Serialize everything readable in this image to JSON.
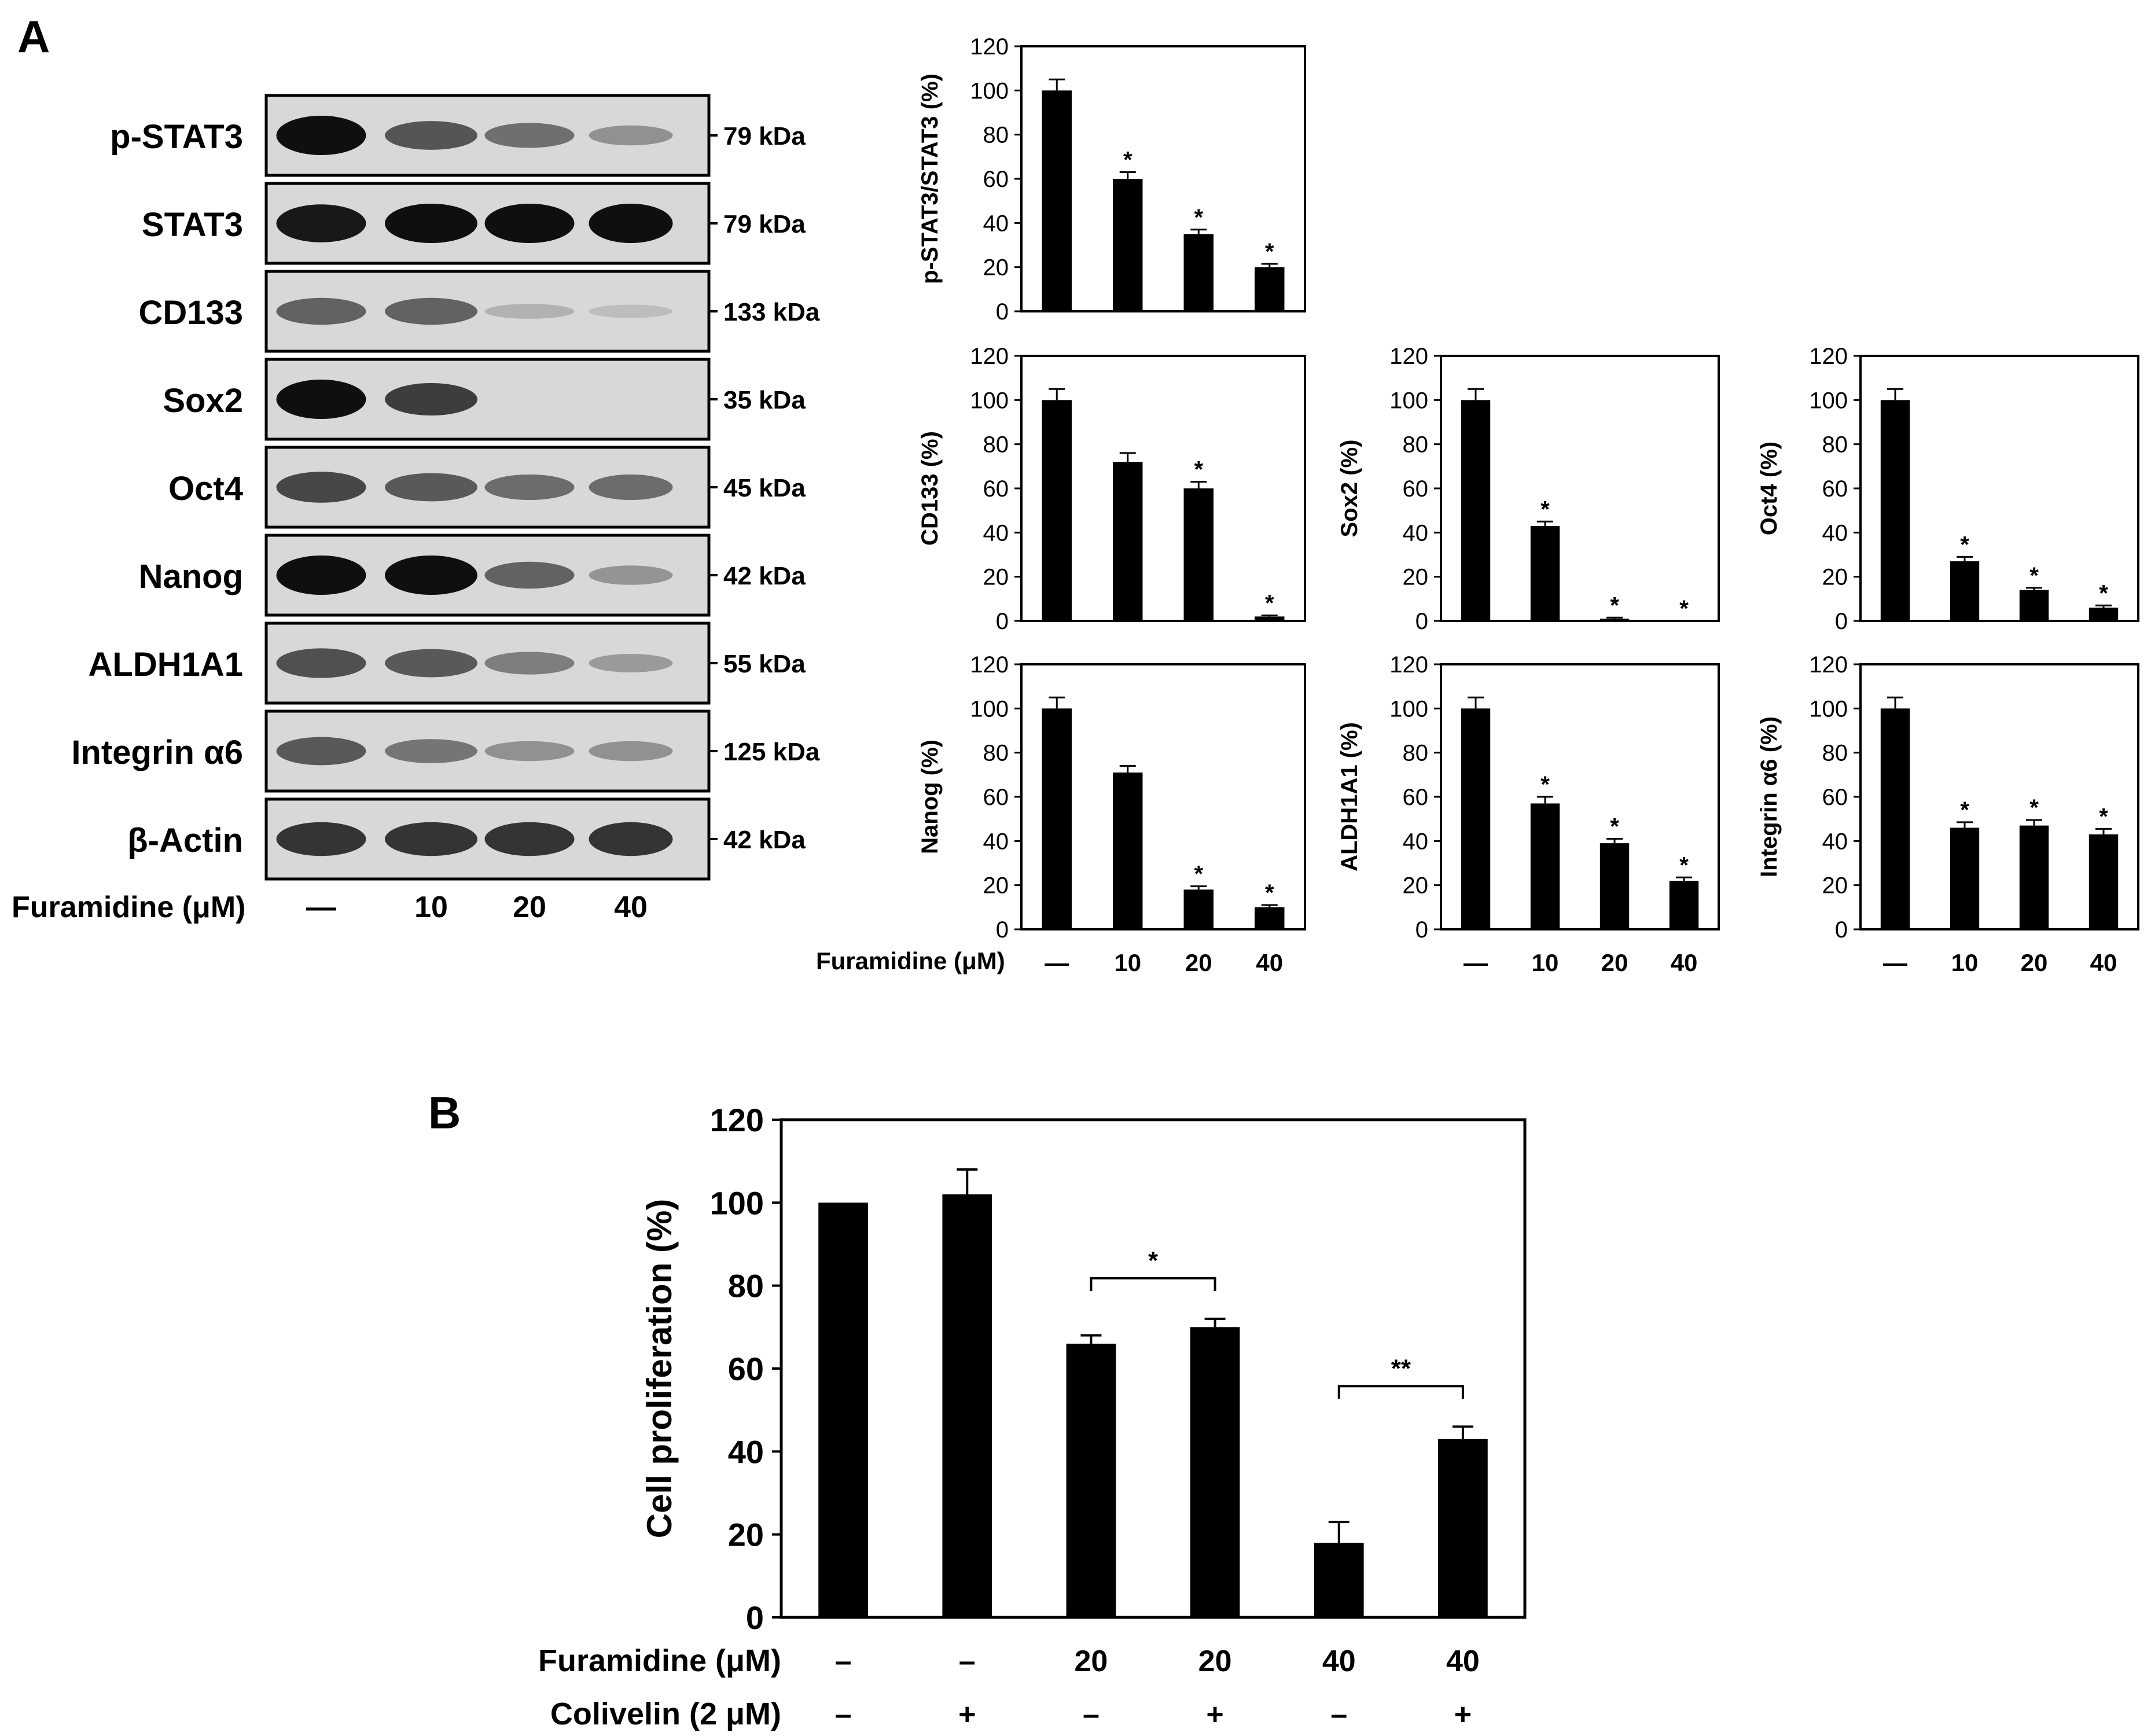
{
  "panel_a_label": "A",
  "panel_b_label": "B",
  "blot": {
    "rows": [
      {
        "label": "p-STAT3",
        "kda": "79 kDa",
        "intensity": [
          1.0,
          0.62,
          0.48,
          0.3
        ]
      },
      {
        "label": "STAT3",
        "kda": "79 kDa",
        "intensity": [
          0.95,
          1.0,
          1.0,
          1.0
        ]
      },
      {
        "label": "CD133",
        "kda": "133 kDa",
        "intensity": [
          0.55,
          0.55,
          0.12,
          0.06
        ]
      },
      {
        "label": "Sox2",
        "kda": "35 kDa",
        "intensity": [
          1.0,
          0.75,
          0.0,
          0.0
        ]
      },
      {
        "label": "Oct4",
        "kda": "45 kDa",
        "intensity": [
          0.7,
          0.6,
          0.5,
          0.5
        ]
      },
      {
        "label": "Nanog",
        "kda": "42 kDa",
        "intensity": [
          1.0,
          1.0,
          0.55,
          0.28
        ]
      },
      {
        "label": "ALDH1A1",
        "kda": "55 kDa",
        "intensity": [
          0.65,
          0.6,
          0.4,
          0.25
        ]
      },
      {
        "label": "Integrin α6",
        "kda": "125 kDa",
        "intensity": [
          0.6,
          0.45,
          0.3,
          0.3
        ]
      },
      {
        "label": "β-Actin",
        "kda": "42 kDa",
        "intensity": [
          0.8,
          0.8,
          0.8,
          0.8
        ]
      }
    ],
    "treatment_label": "Furamidine (μM)",
    "lanes": [
      "—",
      "10",
      "20",
      "40"
    ]
  },
  "shared_xlabel": "Furamidine (μM)",
  "chart_data": [
    {
      "type": "bar",
      "ylabel": "p-STAT3/STAT3 (%)",
      "categories": [
        "—",
        "10",
        "20",
        "40"
      ],
      "values": [
        100,
        60,
        35,
        20
      ],
      "errors": [
        5,
        3,
        2,
        1.5
      ],
      "sig": [
        "",
        "*",
        "*",
        "*"
      ],
      "ylim": [
        0,
        120
      ],
      "yticks": [
        "0",
        "20",
        "40",
        "60",
        "80",
        "100",
        "120"
      ]
    },
    {
      "type": "bar",
      "ylabel": "CD133 (%)",
      "categories": [
        "—",
        "10",
        "20",
        "40"
      ],
      "values": [
        100,
        72,
        60,
        2
      ],
      "errors": [
        5,
        4,
        3,
        0.5
      ],
      "sig": [
        "",
        "",
        "*",
        "*"
      ],
      "ylim": [
        0,
        120
      ],
      "yticks": [
        "0",
        "20",
        "40",
        "60",
        "80",
        "100",
        "120"
      ]
    },
    {
      "type": "bar",
      "ylabel": "Sox2 (%)",
      "categories": [
        "—",
        "10",
        "20",
        "40"
      ],
      "values": [
        100,
        43,
        1,
        0
      ],
      "errors": [
        5,
        2,
        0.5,
        0
      ],
      "sig": [
        "",
        "*",
        "*",
        "*"
      ],
      "ylim": [
        0,
        120
      ],
      "yticks": [
        "0",
        "20",
        "40",
        "60",
        "80",
        "100",
        "120"
      ]
    },
    {
      "type": "bar",
      "ylabel": "Oct4 (%)",
      "categories": [
        "—",
        "10",
        "20",
        "40"
      ],
      "values": [
        100,
        27,
        14,
        6
      ],
      "errors": [
        5,
        2,
        1,
        1
      ],
      "sig": [
        "",
        "*",
        "*",
        "*"
      ],
      "ylim": [
        0,
        120
      ],
      "yticks": [
        "0",
        "20",
        "40",
        "60",
        "80",
        "100",
        "120"
      ]
    },
    {
      "type": "bar",
      "ylabel": "Nanog (%)",
      "categories": [
        "—",
        "10",
        "20",
        "40"
      ],
      "values": [
        100,
        71,
        18,
        10
      ],
      "errors": [
        5,
        3,
        1.5,
        1
      ],
      "sig": [
        "",
        "",
        "*",
        "*"
      ],
      "ylim": [
        0,
        120
      ],
      "yticks": [
        "0",
        "20",
        "40",
        "60",
        "80",
        "100",
        "120"
      ]
    },
    {
      "type": "bar",
      "ylabel": "ALDH1A1 (%)",
      "categories": [
        "—",
        "10",
        "20",
        "40"
      ],
      "values": [
        100,
        57,
        39,
        22
      ],
      "errors": [
        5,
        3,
        2,
        1.5
      ],
      "sig": [
        "",
        "*",
        "*",
        "*"
      ],
      "ylim": [
        0,
        120
      ],
      "yticks": [
        "0",
        "20",
        "40",
        "60",
        "80",
        "100",
        "120"
      ]
    },
    {
      "type": "bar",
      "ylabel": "Integrin α6 (%)",
      "categories": [
        "—",
        "10",
        "20",
        "40"
      ],
      "values": [
        100,
        46,
        47,
        43
      ],
      "errors": [
        5,
        2.5,
        2.5,
        2.5
      ],
      "sig": [
        "",
        "*",
        "*",
        "*"
      ],
      "ylim": [
        0,
        120
      ],
      "yticks": [
        "0",
        "20",
        "40",
        "60",
        "80",
        "100",
        "120"
      ]
    },
    {
      "type": "bar",
      "ylabel": "Cell proliferation (%)",
      "values": [
        100,
        102,
        66,
        70,
        18,
        43
      ],
      "errors": [
        0,
        6,
        2,
        2,
        5,
        3
      ],
      "ylim": [
        0,
        120
      ],
      "yticks": [
        "0",
        "20",
        "40",
        "60",
        "80",
        "100",
        "120"
      ],
      "row_labels": [
        "Furamidine (μM)",
        "Colivelin (2 μM)"
      ],
      "furamidine": [
        "–",
        "–",
        "20",
        "20",
        "40",
        "40"
      ],
      "colivelin": [
        "–",
        "+",
        "–",
        "+",
        "–",
        "+"
      ],
      "brackets": [
        {
          "from": 2,
          "to": 3,
          "label": "*"
        },
        {
          "from": 4,
          "to": 5,
          "label": "**"
        }
      ]
    }
  ]
}
